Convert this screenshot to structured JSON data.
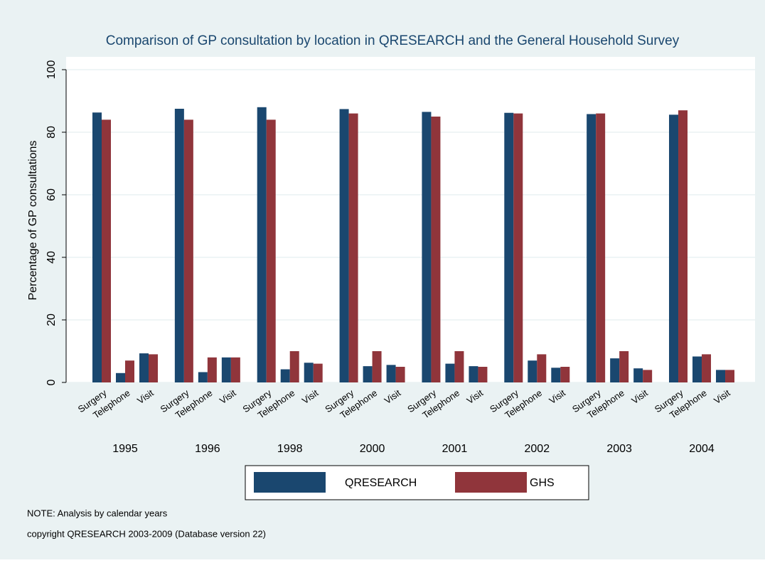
{
  "chart_data": {
    "type": "bar",
    "title": "Comparison of GP consultation by location in QRESEARCH and the General Household Survey",
    "ylabel": "Percentage of GP consultations",
    "groups": [
      "1995",
      "1996",
      "1998",
      "2000",
      "2001",
      "2002",
      "2003",
      "2004"
    ],
    "categories": [
      "Surgery",
      "Telephone",
      "Visit",
      "Surgery",
      "Telephone",
      "Visit",
      "Surgery",
      "Telephone",
      "Visit",
      "Surgery",
      "Telephone",
      "Visit",
      "Surgery",
      "Telephone",
      "Visit",
      "Surgery",
      "Telephone",
      "Visit",
      "Surgery",
      "Telephone",
      "Visit",
      "Surgery",
      "Telephone",
      "Visit"
    ],
    "series": [
      {
        "name": "QRESEARCH",
        "color": "#1a476f",
        "values": [
          86.3,
          3,
          9.3,
          87.5,
          3.3,
          8,
          88,
          4.2,
          6.3,
          87.4,
          5.2,
          5.6,
          86.5,
          6,
          5.2,
          86.2,
          7,
          4.7,
          85.8,
          7.7,
          4.5,
          85.6,
          8.3,
          4
        ]
      },
      {
        "name": "GHS",
        "color": "#90353b",
        "values": [
          84,
          7,
          9,
          84,
          8,
          8,
          84,
          10,
          6,
          86,
          10,
          5,
          85,
          10,
          5,
          86,
          9,
          5,
          86,
          10,
          4,
          87,
          9,
          4
        ]
      }
    ],
    "ylim": [
      0,
      100
    ],
    "yticks": [
      0,
      20,
      40,
      60,
      80,
      100
    ],
    "grid": true,
    "notes": [
      "NOTE: Analysis by calendar years",
      "copyright QRESEARCH 2003-2009 (Database version 22)"
    ]
  }
}
